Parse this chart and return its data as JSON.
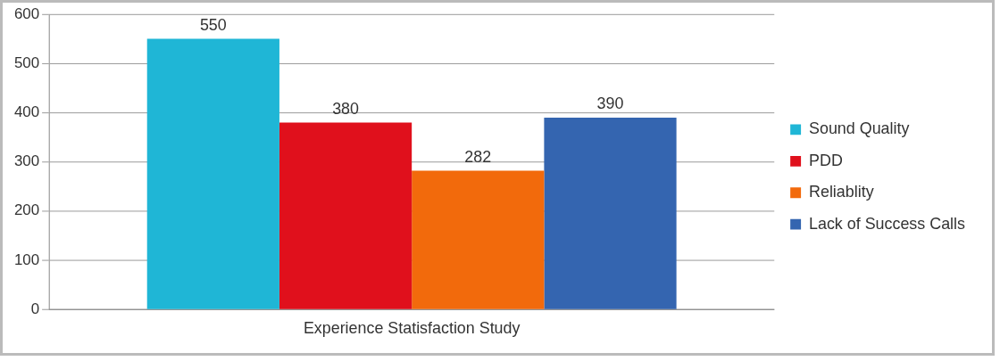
{
  "chart_data": {
    "type": "bar",
    "categories": [
      "Experience Statisfaction Study"
    ],
    "series": [
      {
        "name": "Sound Quality",
        "color": "#1fb6d6",
        "values": [
          550
        ]
      },
      {
        "name": "PDD",
        "color": "#e0101c",
        "values": [
          380
        ]
      },
      {
        "name": "Reliablity",
        "color": "#f26a0c",
        "values": [
          282
        ]
      },
      {
        "name": "Lack of Success Calls",
        "color": "#3465b0",
        "values": [
          390
        ]
      }
    ],
    "ylim": [
      0,
      600
    ],
    "yticks": [
      0,
      100,
      200,
      300,
      400,
      500,
      600
    ],
    "grid": "y",
    "legend": "right",
    "data_labels": true
  }
}
